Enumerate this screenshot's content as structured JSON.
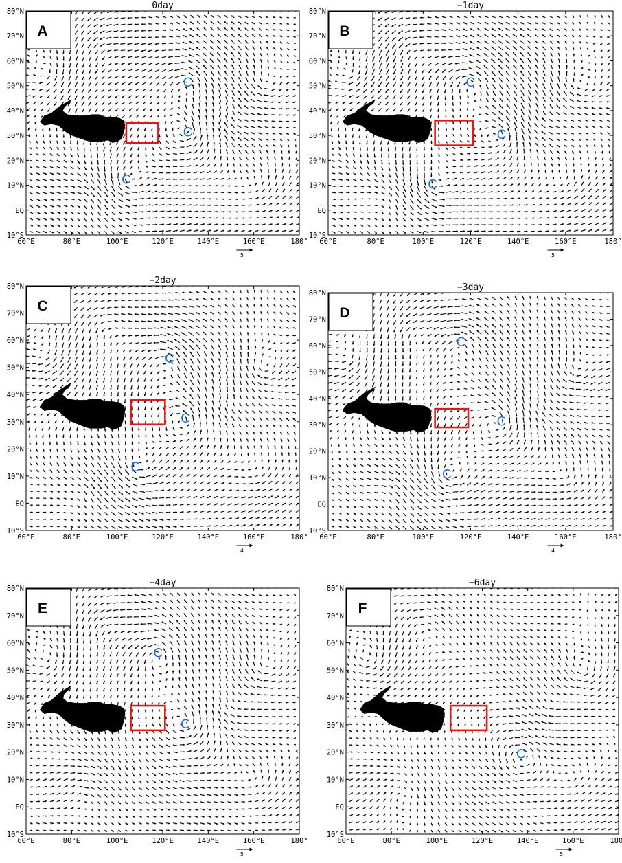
{
  "figure": {
    "x_ticks": [
      "60°E",
      "80°E",
      "100°E",
      "120°E",
      "140°E",
      "160°E",
      "180°"
    ],
    "y_ticks": [
      "80°N",
      "70°N",
      "60°N",
      "50°N",
      "40°N",
      "30°N",
      "20°N",
      "10°N",
      "EQ",
      "10°S"
    ],
    "cyclone_label": "C",
    "colors": {
      "box": "#e01a1a",
      "cyclone": "#1f6fd1",
      "terrain": "#000000",
      "vectors": "#000000"
    },
    "panels": [
      {
        "letter": "A",
        "title": "0day",
        "ref_vector": "5",
        "box": {
          "lon": [
            104,
            118
          ],
          "lat": [
            27,
            35
          ]
        },
        "cyclones": [
          {
            "lon": 131,
            "lat": 51
          },
          {
            "lon": 131,
            "lat": 31
          },
          {
            "lon": 104,
            "lat": 12
          }
        ]
      },
      {
        "letter": "B",
        "title": "−1day",
        "ref_vector": "5",
        "box": {
          "lon": [
            105,
            121
          ],
          "lat": [
            26,
            36
          ]
        },
        "cyclones": [
          {
            "lon": 120,
            "lat": 51
          },
          {
            "lon": 133,
            "lat": 30
          },
          {
            "lon": 104,
            "lat": 10
          }
        ]
      },
      {
        "letter": "C",
        "title": "−2day",
        "ref_vector": "4",
        "box": {
          "lon": [
            106,
            121
          ],
          "lat": [
            29,
            38
          ]
        },
        "cyclones": [
          {
            "lon": 123,
            "lat": 53
          },
          {
            "lon": 130,
            "lat": 31
          },
          {
            "lon": 108,
            "lat": 13
          }
        ]
      },
      {
        "letter": "D",
        "title": "−3day",
        "ref_vector": "4",
        "box": {
          "lon": [
            105,
            119
          ],
          "lat": [
            29,
            36
          ]
        },
        "cyclones": [
          {
            "lon": 116,
            "lat": 61
          },
          {
            "lon": 133,
            "lat": 31
          },
          {
            "lon": 110,
            "lat": 11
          }
        ]
      },
      {
        "letter": "E",
        "title": "−4day",
        "ref_vector": "5",
        "box": {
          "lon": [
            106,
            121
          ],
          "lat": [
            28,
            37
          ]
        },
        "cyclones": [
          {
            "lon": 118,
            "lat": 56
          },
          {
            "lon": 130,
            "lat": 30
          }
        ]
      },
      {
        "letter": "F",
        "title": "−6day",
        "ref_vector": "5",
        "box": {
          "lon": [
            106,
            122
          ],
          "lat": [
            28,
            37
          ]
        },
        "cyclones": [
          {
            "lon": 137,
            "lat": 19
          }
        ]
      }
    ]
  }
}
